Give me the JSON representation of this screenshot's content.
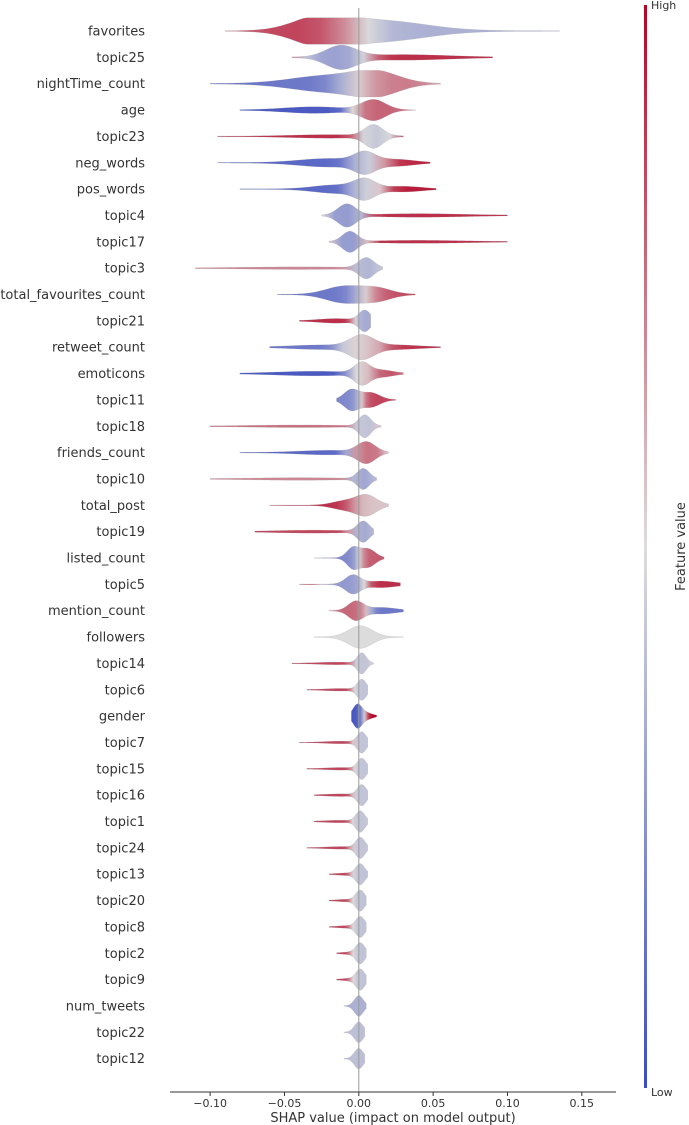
{
  "chart_data": {
    "type": "violin",
    "title": "",
    "xlabel": "SHAP value (impact on model output)",
    "ylabel": "",
    "xlim": [
      -0.127,
      0.173
    ],
    "xticks": [
      -0.1,
      -0.05,
      0.0,
      0.05,
      0.1,
      0.15
    ],
    "xtick_labels": [
      "−0.10",
      "−0.05",
      "0.00",
      "0.05",
      "0.10",
      "0.15"
    ],
    "colorbar": {
      "label": "Feature value",
      "high_label": "High",
      "low_label": "Low",
      "high_color": "#b40426",
      "mid_color": "#dddcdc",
      "low_color": "#3b4cc0"
    },
    "features": [
      {
        "name": "favorites",
        "min": -0.09,
        "max": 0.135,
        "lobes": [
          {
            "c": -0.025,
            "w": 0.018,
            "h": 13,
            "v": 0.95
          },
          {
            "c": 0.015,
            "w": 0.03,
            "h": 10,
            "v": 0.35
          }
        ]
      },
      {
        "name": "topic25",
        "min": -0.045,
        "max": 0.09,
        "lobes": [
          {
            "c": -0.012,
            "w": 0.01,
            "h": 11,
            "v": 0.25
          },
          {
            "c": 0.03,
            "w": 0.03,
            "h": 2.5,
            "v": 0.9
          }
        ]
      },
      {
        "name": "nightTime_count",
        "min": -0.1,
        "max": 0.055,
        "lobes": [
          {
            "c": -0.02,
            "w": 0.025,
            "h": 8,
            "v": 0.15
          },
          {
            "c": 0.012,
            "w": 0.015,
            "h": 10,
            "v": 0.85
          }
        ]
      },
      {
        "name": "age",
        "min": -0.08,
        "max": 0.038,
        "lobes": [
          {
            "c": -0.03,
            "w": 0.02,
            "h": 3,
            "v": 0.05
          },
          {
            "c": 0.01,
            "w": 0.008,
            "h": 10,
            "v": 0.8
          }
        ]
      },
      {
        "name": "topic23",
        "min": -0.095,
        "max": 0.03,
        "lobes": [
          {
            "c": 0.01,
            "w": 0.006,
            "h": 11,
            "v": 0.4
          },
          {
            "c": -0.02,
            "w": 0.025,
            "h": 1.5,
            "v": 0.9
          }
        ]
      },
      {
        "name": "neg_words",
        "min": -0.095,
        "max": 0.048,
        "lobes": [
          {
            "c": -0.02,
            "w": 0.02,
            "h": 4,
            "v": 0.1
          },
          {
            "c": 0.004,
            "w": 0.007,
            "h": 9,
            "v": 0.45
          },
          {
            "c": 0.025,
            "w": 0.012,
            "h": 3,
            "v": 0.95
          }
        ]
      },
      {
        "name": "pos_words",
        "min": -0.08,
        "max": 0.052,
        "lobes": [
          {
            "c": -0.015,
            "w": 0.015,
            "h": 4,
            "v": 0.1
          },
          {
            "c": 0.004,
            "w": 0.007,
            "h": 9,
            "v": 0.5
          },
          {
            "c": 0.03,
            "w": 0.012,
            "h": 2.5,
            "v": 0.95
          }
        ]
      },
      {
        "name": "topic4",
        "min": -0.025,
        "max": 0.1,
        "lobes": [
          {
            "c": -0.008,
            "w": 0.006,
            "h": 11,
            "v": 0.25
          },
          {
            "c": 0.04,
            "w": 0.03,
            "h": 1.5,
            "v": 0.9
          }
        ]
      },
      {
        "name": "topic17",
        "min": -0.02,
        "max": 0.1,
        "lobes": [
          {
            "c": -0.006,
            "w": 0.005,
            "h": 10,
            "v": 0.25
          },
          {
            "c": 0.04,
            "w": 0.03,
            "h": 1.2,
            "v": 0.9
          }
        ]
      },
      {
        "name": "topic3",
        "min": -0.11,
        "max": 0.016,
        "lobes": [
          {
            "c": 0.005,
            "w": 0.005,
            "h": 10,
            "v": 0.35
          },
          {
            "c": -0.04,
            "w": 0.035,
            "h": 1,
            "v": 0.7
          }
        ]
      },
      {
        "name": "total_favourites_count",
        "min": -0.055,
        "max": 0.038,
        "lobes": [
          {
            "c": -0.01,
            "w": 0.012,
            "h": 8,
            "v": 0.15
          },
          {
            "c": 0.012,
            "w": 0.01,
            "h": 6,
            "v": 0.85
          }
        ]
      },
      {
        "name": "topic21",
        "min": -0.04,
        "max": 0.008,
        "lobes": [
          {
            "c": 0.004,
            "w": 0.004,
            "h": 10,
            "v": 0.3
          },
          {
            "c": -0.015,
            "w": 0.012,
            "h": 2,
            "v": 0.9
          }
        ]
      },
      {
        "name": "retweet_count",
        "min": -0.06,
        "max": 0.055,
        "lobes": [
          {
            "c": -0.025,
            "w": 0.02,
            "h": 2,
            "v": 0.15
          },
          {
            "c": 0.002,
            "w": 0.008,
            "h": 11,
            "v": 0.55
          },
          {
            "c": 0.025,
            "w": 0.015,
            "h": 2,
            "v": 0.9
          }
        ]
      },
      {
        "name": "emoticons",
        "min": -0.08,
        "max": 0.03,
        "lobes": [
          {
            "c": -0.03,
            "w": 0.025,
            "h": 2,
            "v": 0.05
          },
          {
            "c": 0.002,
            "w": 0.005,
            "h": 10,
            "v": 0.55
          },
          {
            "c": 0.015,
            "w": 0.008,
            "h": 3,
            "v": 0.9
          }
        ]
      },
      {
        "name": "topic11",
        "min": -0.015,
        "max": 0.025,
        "lobes": [
          {
            "c": -0.005,
            "w": 0.005,
            "h": 10,
            "v": 0.2
          },
          {
            "c": 0.008,
            "w": 0.006,
            "h": 7,
            "v": 0.85
          }
        ]
      },
      {
        "name": "topic18",
        "min": -0.1,
        "max": 0.015,
        "lobes": [
          {
            "c": 0.004,
            "w": 0.004,
            "h": 11,
            "v": 0.4
          },
          {
            "c": -0.04,
            "w": 0.03,
            "h": 1,
            "v": 0.75
          }
        ]
      },
      {
        "name": "friends_count",
        "min": -0.08,
        "max": 0.02,
        "lobes": [
          {
            "c": -0.02,
            "w": 0.02,
            "h": 2,
            "v": 0.1
          },
          {
            "c": 0.005,
            "w": 0.006,
            "h": 10,
            "v": 0.8
          }
        ]
      },
      {
        "name": "topic10",
        "min": -0.1,
        "max": 0.012,
        "lobes": [
          {
            "c": 0.003,
            "w": 0.004,
            "h": 10,
            "v": 0.3
          },
          {
            "c": -0.04,
            "w": 0.03,
            "h": 1,
            "v": 0.7
          }
        ]
      },
      {
        "name": "total_post",
        "min": -0.06,
        "max": 0.02,
        "lobes": [
          {
            "c": -0.01,
            "w": 0.008,
            "h": 4,
            "v": 0.9
          },
          {
            "c": 0.005,
            "w": 0.007,
            "h": 10,
            "v": 0.55
          }
        ]
      },
      {
        "name": "topic19",
        "min": -0.07,
        "max": 0.01,
        "lobes": [
          {
            "c": 0.003,
            "w": 0.004,
            "h": 10,
            "v": 0.3
          },
          {
            "c": -0.03,
            "w": 0.025,
            "h": 1.2,
            "v": 0.85
          }
        ]
      },
      {
        "name": "listed_count",
        "min": -0.03,
        "max": 0.017,
        "lobes": [
          {
            "c": -0.004,
            "w": 0.004,
            "h": 10,
            "v": 0.2
          },
          {
            "c": 0.006,
            "w": 0.005,
            "h": 9,
            "v": 0.8
          }
        ]
      },
      {
        "name": "topic5",
        "min": -0.04,
        "max": 0.028,
        "lobes": [
          {
            "c": -0.004,
            "w": 0.005,
            "h": 9,
            "v": 0.25
          },
          {
            "c": 0.015,
            "w": 0.01,
            "h": 3,
            "v": 0.9
          }
        ]
      },
      {
        "name": "mention_count",
        "min": -0.02,
        "max": 0.03,
        "lobes": [
          {
            "c": -0.002,
            "w": 0.005,
            "h": 9,
            "v": 0.8
          },
          {
            "c": 0.015,
            "w": 0.01,
            "h": 3,
            "v": 0.15
          }
        ]
      },
      {
        "name": "followers",
        "min": -0.03,
        "max": 0.03,
        "lobes": [
          {
            "c": 0.001,
            "w": 0.008,
            "h": 11,
            "v": 0.5
          }
        ]
      },
      {
        "name": "topic14",
        "min": -0.045,
        "max": 0.01,
        "lobes": [
          {
            "c": 0.002,
            "w": 0.003,
            "h": 10,
            "v": 0.4
          },
          {
            "c": -0.015,
            "w": 0.012,
            "h": 1,
            "v": 0.85
          }
        ]
      },
      {
        "name": "topic6",
        "min": -0.035,
        "max": 0.006,
        "lobes": [
          {
            "c": 0.002,
            "w": 0.003,
            "h": 10,
            "v": 0.4
          },
          {
            "c": -0.012,
            "w": 0.01,
            "h": 1,
            "v": 0.85
          }
        ]
      },
      {
        "name": "gender",
        "min": -0.005,
        "max": 0.012,
        "lobes": [
          {
            "c": -0.001,
            "w": 0.003,
            "h": 11,
            "v": 0.0
          },
          {
            "c": 0.005,
            "w": 0.004,
            "h": 3,
            "v": 1.0
          }
        ]
      },
      {
        "name": "topic7",
        "min": -0.04,
        "max": 0.006,
        "lobes": [
          {
            "c": 0.002,
            "w": 0.003,
            "h": 10,
            "v": 0.4
          },
          {
            "c": -0.012,
            "w": 0.01,
            "h": 1,
            "v": 0.85
          }
        ]
      },
      {
        "name": "topic15",
        "min": -0.035,
        "max": 0.006,
        "lobes": [
          {
            "c": 0.002,
            "w": 0.003,
            "h": 10,
            "v": 0.4
          },
          {
            "c": -0.012,
            "w": 0.01,
            "h": 1,
            "v": 0.85
          }
        ]
      },
      {
        "name": "topic16",
        "min": -0.03,
        "max": 0.006,
        "lobes": [
          {
            "c": 0.002,
            "w": 0.003,
            "h": 10,
            "v": 0.4
          },
          {
            "c": -0.012,
            "w": 0.01,
            "h": 1,
            "v": 0.85
          }
        ]
      },
      {
        "name": "topic1",
        "min": -0.03,
        "max": 0.006,
        "lobes": [
          {
            "c": 0.001,
            "w": 0.003,
            "h": 10,
            "v": 0.4
          },
          {
            "c": -0.012,
            "w": 0.01,
            "h": 1,
            "v": 0.85
          }
        ]
      },
      {
        "name": "topic24",
        "min": -0.035,
        "max": 0.006,
        "lobes": [
          {
            "c": 0.001,
            "w": 0.003,
            "h": 10,
            "v": 0.4
          },
          {
            "c": -0.012,
            "w": 0.01,
            "h": 1,
            "v": 0.85
          }
        ]
      },
      {
        "name": "topic13",
        "min": -0.02,
        "max": 0.006,
        "lobes": [
          {
            "c": 0.001,
            "w": 0.003,
            "h": 10,
            "v": 0.4
          },
          {
            "c": -0.008,
            "w": 0.006,
            "h": 1,
            "v": 0.85
          }
        ]
      },
      {
        "name": "topic20",
        "min": -0.02,
        "max": 0.005,
        "lobes": [
          {
            "c": 0.001,
            "w": 0.003,
            "h": 10,
            "v": 0.4
          },
          {
            "c": -0.008,
            "w": 0.006,
            "h": 1,
            "v": 0.85
          }
        ]
      },
      {
        "name": "topic8",
        "min": -0.02,
        "max": 0.005,
        "lobes": [
          {
            "c": 0.001,
            "w": 0.003,
            "h": 10,
            "v": 0.4
          },
          {
            "c": -0.008,
            "w": 0.006,
            "h": 1,
            "v": 0.85
          }
        ]
      },
      {
        "name": "topic2",
        "min": -0.015,
        "max": 0.005,
        "lobes": [
          {
            "c": 0.001,
            "w": 0.003,
            "h": 10,
            "v": 0.4
          },
          {
            "c": -0.006,
            "w": 0.005,
            "h": 1,
            "v": 0.85
          }
        ]
      },
      {
        "name": "topic9",
        "min": -0.015,
        "max": 0.005,
        "lobes": [
          {
            "c": 0.001,
            "w": 0.003,
            "h": 10,
            "v": 0.4
          },
          {
            "c": -0.006,
            "w": 0.005,
            "h": 1,
            "v": 0.85
          }
        ]
      },
      {
        "name": "num_tweets",
        "min": -0.01,
        "max": 0.005,
        "lobes": [
          {
            "c": 0.0,
            "w": 0.003,
            "h": 10,
            "v": 0.35
          }
        ]
      },
      {
        "name": "topic22",
        "min": -0.01,
        "max": 0.004,
        "lobes": [
          {
            "c": 0.0,
            "w": 0.003,
            "h": 10,
            "v": 0.4
          }
        ]
      },
      {
        "name": "topic12",
        "min": -0.01,
        "max": 0.004,
        "lobes": [
          {
            "c": 0.0,
            "w": 0.003,
            "h": 10,
            "v": 0.4
          }
        ]
      }
    ]
  }
}
